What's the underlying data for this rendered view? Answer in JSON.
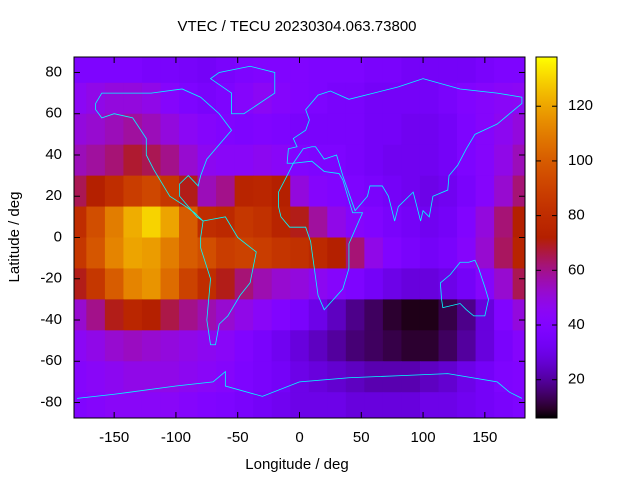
{
  "chart_data": {
    "type": "heatmap",
    "title": "VTEC / TECU 20230304.063.73800",
    "xlabel": "Longitude / deg",
    "ylabel": "Latitude / deg",
    "colormap": "gnuplot",
    "x": [
      -180,
      -165,
      -150,
      -135,
      -120,
      -105,
      -90,
      -75,
      -60,
      -45,
      -30,
      -15,
      0,
      15,
      30,
      45,
      60,
      75,
      90,
      105,
      120,
      135,
      150,
      165,
      180
    ],
    "y": [
      82.5,
      67.5,
      52.5,
      37.5,
      22.5,
      7.5,
      -7.5,
      -22.5,
      -37.5,
      -52.5,
      -67.5,
      -82.5
    ],
    "z": [
      [
        38,
        38,
        38,
        38,
        36,
        36,
        35,
        34,
        36,
        38,
        40,
        40,
        40,
        38,
        38,
        38,
        36,
        36,
        34,
        34,
        34,
        34,
        36,
        38,
        38
      ],
      [
        45,
        48,
        50,
        50,
        48,
        42,
        38,
        36,
        38,
        42,
        45,
        42,
        40,
        38,
        36,
        36,
        34,
        34,
        34,
        34,
        36,
        40,
        42,
        44,
        45
      ],
      [
        50,
        52,
        55,
        58,
        55,
        50,
        45,
        42,
        40,
        38,
        40,
        38,
        36,
        36,
        36,
        36,
        34,
        34,
        32,
        32,
        34,
        38,
        42,
        46,
        50
      ],
      [
        55,
        58,
        62,
        68,
        65,
        60,
        52,
        46,
        44,
        44,
        46,
        44,
        40,
        38,
        38,
        36,
        34,
        32,
        32,
        32,
        34,
        38,
        42,
        48,
        55
      ],
      [
        65,
        72,
        80,
        88,
        92,
        85,
        70,
        55,
        60,
        75,
        76,
        72,
        50,
        42,
        40,
        38,
        36,
        34,
        32,
        30,
        32,
        36,
        42,
        52,
        62
      ],
      [
        80,
        95,
        110,
        122,
        130,
        120,
        100,
        80,
        78,
        85,
        82,
        75,
        70,
        58,
        48,
        42,
        40,
        36,
        34,
        32,
        34,
        40,
        50,
        62,
        72
      ],
      [
        85,
        98,
        112,
        120,
        118,
        110,
        100,
        95,
        88,
        90,
        88,
        84,
        82,
        78,
        72,
        62,
        48,
        40,
        36,
        34,
        36,
        42,
        52,
        64,
        75
      ],
      [
        70,
        85,
        100,
        112,
        116,
        105,
        90,
        80,
        70,
        62,
        56,
        52,
        50,
        46,
        42,
        38,
        34,
        30,
        28,
        28,
        30,
        34,
        42,
        52,
        65
      ],
      [
        52,
        60,
        70,
        76,
        72,
        66,
        60,
        56,
        52,
        48,
        44,
        40,
        36,
        30,
        24,
        18,
        14,
        10,
        8,
        8,
        12,
        18,
        28,
        40,
        50
      ],
      [
        45,
        48,
        52,
        54,
        52,
        50,
        48,
        46,
        44,
        40,
        36,
        32,
        28,
        24,
        20,
        16,
        14,
        12,
        10,
        10,
        14,
        20,
        28,
        36,
        42
      ],
      [
        42,
        44,
        46,
        48,
        48,
        48,
        46,
        44,
        42,
        38,
        36,
        34,
        30,
        28,
        26,
        24,
        22,
        22,
        22,
        24,
        26,
        30,
        34,
        38,
        40
      ],
      [
        40,
        42,
        44,
        44,
        44,
        44,
        42,
        40,
        38,
        36,
        34,
        32,
        30,
        30,
        30,
        28,
        28,
        28,
        28,
        30,
        30,
        32,
        34,
        36,
        38
      ]
    ],
    "xlim": [
      -182.5,
      182.5
    ],
    "xticks": [
      -150,
      -100,
      -50,
      0,
      50,
      100,
      150
    ],
    "ylim": [
      -87.5,
      87.5
    ],
    "yticks": [
      -80,
      -60,
      -40,
      -20,
      0,
      20,
      40,
      60,
      80
    ],
    "cblim": [
      6,
      138
    ],
    "cbticks": [
      20,
      40,
      60,
      80,
      100,
      120
    ]
  }
}
